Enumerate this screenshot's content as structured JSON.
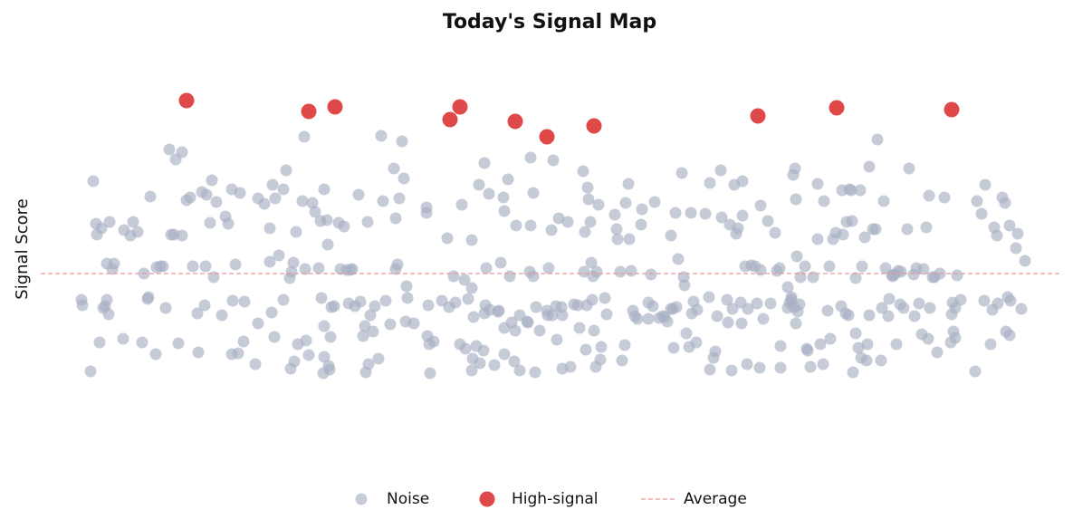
{
  "chart_data": {
    "type": "scatter",
    "title": "Today's Signal Map",
    "ylabel": "Signal Score",
    "xlim": [
      0,
      1125
    ],
    "ylim": [
      -228,
      262
    ],
    "legend": "bottom",
    "average": {
      "name": "Average",
      "value": 0,
      "color": "#e89a9a"
    },
    "series": [
      {
        "name": "Noise",
        "color": "#a7afc3",
        "x": [
          45,
          46,
          55,
          58,
          61,
          62,
          65,
          67,
          69,
          71,
          73,
          75,
          76,
          79,
          81,
          73,
          91,
          92,
          99,
          102,
          107,
          112,
          114,
          118,
          119,
          121,
          127,
          128,
          132,
          135,
          138,
          142,
          144,
          147,
          149,
          152,
          156,
          156,
          161,
          165,
          168,
          173,
          174,
          178,
          181,
          182,
          183,
          187,
          189,
          191,
          194,
          200,
          204,
          207,
          212,
          211,
          215,
          211,
          218,
          220,
          225,
          224,
          237,
          240,
          240,
          247,
          253,
          253,
          255,
          256,
          258,
          259,
          263,
          268,
          268,
          271,
          275,
          276,
          277,
          279,
          280,
          282,
          284,
          289,
          291,
          292,
          293,
          296,
          300,
          303,
          307,
          309,
          310,
          313,
          313,
          313,
          316,
          317,
          312,
          318,
          319,
          320,
          321,
          324,
          329,
          331,
          335,
          338,
          340,
          342,
          344,
          347,
          351,
          353,
          356,
          358,
          359,
          361,
          362,
          364,
          367,
          369,
          373,
          376,
          378,
          381,
          386,
          390,
          392,
          392,
          394,
          396,
          399,
          401,
          403,
          404,
          405,
          412,
          426,
          426,
          427,
          428,
          429,
          430,
          434,
          443,
          449,
          451,
          456,
          458,
          463,
          465,
          468,
          469,
          472,
          476,
          476,
          477,
          476,
          478,
          481,
          484,
          485,
          489,
          490,
          491,
          490,
          492,
          495,
          496,
          501,
          505,
          506,
          508,
          511,
          512,
          512,
          512,
          516,
          518,
          520,
          523,
          524,
          525,
          529,
          529,
          537,
          538,
          540,
          541,
          541,
          544,
          544,
          546,
          547,
          551,
          559,
          560,
          561,
          564,
          565,
          566,
          569,
          570,
          572,
          575,
          576,
          576,
          582,
          585,
          589,
          593,
          595,
          599,
          600,
          601,
          602,
          603,
          604,
          605,
          607,
          608,
          609,
          610,
          611,
          613,
          614,
          616,
          618,
          619,
          623,
          625,
          634,
          636,
          637,
          640,
          642,
          645,
          646,
          649,
          650,
          652,
          654,
          656,
          659,
          663,
          664,
          671,
          671,
          674,
          676,
          678,
          683,
          687,
          689,
          692,
          696,
          696,
          698,
          699,
          701,
          702,
          704,
          708,
          710,
          711,
          713,
          716,
          718,
          719,
          721,
          724,
          725,
          734,
          738,
          739,
          739,
          743,
          745,
          747,
          751,
          752,
          758,
          759,
          761,
          763,
          764,
          766,
          768,
          770,
          773,
          774,
          775,
          775,
          778,
          780,
          781,
          785,
          789,
          791,
          795,
          794,
          795,
          798,
          803,
          806,
          811,
          813,
          816,
          817,
          817,
          825,
          825,
          827,
          829,
          829,
          831,
          832,
          833,
          834,
          834,
          835,
          836,
          838,
          839,
          844,
          846,
          847,
          850,
          853,
          858,
          858,
          861,
          864,
          865,
          869,
          871,
          872,
          875,
          878,
          884,
          885,
          886,
          889,
          890,
          892,
          893,
          895,
          896,
          897,
          900,
          900,
          903,
          905,
          906,
          907,
          910,
          912,
          913,
          915,
          915,
          919,
          922,
          924,
          928,
          929,
          931,
          933,
          936,
          937,
          940,
          941,
          943,
          945,
          947,
          949,
          950,
          953,
          957,
          959,
          964,
          965,
          967,
          970,
          973,
          975,
          978,
          981,
          980,
          982,
          985,
          987,
          990,
          993,
          998,
          1005,
          1006,
          1007,
          1008,
          1010,
          1010,
          1012,
          1016,
          1032,
          1034,
          1039,
          1042,
          1043,
          1049,
          1051,
          1053,
          1056,
          1057,
          1062,
          1065,
          1066,
          1068,
          1070,
          1070,
          1071,
          1077,
          1079,
          1083,
          1087
        ],
        "values": [
          -29,
          -35,
          -108,
          102,
          55,
          43,
          -76,
          50,
          -38,
          -36,
          11,
          -45,
          57,
          5,
          11,
          -29,
          -72,
          48,
          42,
          57,
          46,
          -76,
          0,
          -28,
          -26,
          85,
          -89,
          7,
          8,
          8,
          -38,
          137,
          43,
          43,
          126,
          -77,
          134,
          42,
          81,
          84,
          8,
          -44,
          -87,
          90,
          -35,
          8,
          87,
          56,
          103,
          -4,
          79,
          -46,
          63,
          55,
          -30,
          93,
          10,
          -89,
          -88,
          89,
          -31,
          -75,
          -100,
          83,
          -55,
          77,
          13,
          50,
          -43,
          98,
          -70,
          83,
          20,
          -29,
          93,
          114,
          -5,
          -105,
          2,
          12,
          -97,
          46,
          -78,
          80,
          151,
          5,
          -74,
          -90,
          78,
          68,
          6,
          58,
          -27,
          -58,
          93,
          -92,
          59,
          32,
          -110,
          -102,
          -106,
          -70,
          -37,
          -36,
          56,
          5,
          52,
          4,
          -33,
          4,
          5,
          -36,
          87,
          -31,
          -69,
          -58,
          -109,
          57,
          -100,
          -46,
          -64,
          -36,
          -94,
          152,
          80,
          -30,
          -56,
          116,
          5,
          61,
          10,
          83,
          146,
          105,
          -53,
          -14,
          -27,
          -55,
          67,
          73,
          -69,
          -35,
          -78,
          -110,
          -75,
          -30,
          39,
          -37,
          -3,
          -32,
          -78,
          76,
          -7,
          -83,
          -28,
          37,
          -16,
          -94,
          -107,
          -48,
          -80,
          98,
          -99,
          -85,
          122,
          -35,
          -44,
          6,
          88,
          -40,
          -101,
          -42,
          -41,
          12,
          84,
          69,
          -60,
          -89,
          104,
          -3,
          -54,
          -97,
          -63,
          53,
          -107,
          -46,
          -53,
          -54,
          2,
          128,
          53,
          89,
          -3,
          -109,
          -37,
          -63,
          -41,
          -46,
          6,
          48,
          -46,
          125,
          -36,
          -73,
          61,
          -37,
          -105,
          -46,
          57,
          -103,
          -34,
          -35,
          -60,
          113,
          2,
          46,
          -84,
          -35,
          95,
          82,
          57,
          12,
          -29,
          -3,
          -63,
          -103,
          2,
          76,
          -95,
          -81,
          -27,
          -45,
          65,
          49,
          38,
          2,
          -96,
          -79,
          78,
          99,
          38,
          3,
          -41,
          -47,
          -50,
          54,
          71,
          -50,
          -32,
          -1,
          -36,
          79,
          -49,
          -47,
          -48,
          -53,
          -39,
          42,
          -39,
          -82,
          67,
          -37,
          16,
          111,
          -4,
          -13,
          -66,
          -81,
          67,
          -44,
          -31,
          -76,
          -40,
          66,
          -26,
          -106,
          100,
          -93,
          -86,
          -47,
          114,
          62,
          -29,
          -54,
          54,
          -107,
          -39,
          98,
          44,
          50,
          -32,
          -55,
          102,
          64,
          8,
          -100,
          -39,
          9,
          8,
          -33,
          75,
          -104,
          4,
          -50,
          58,
          -33,
          45,
          3,
          6,
          -104,
          -80,
          -15,
          -38,
          -32,
          -29,
          -26,
          109,
          -37,
          116,
          -55,
          82,
          19,
          -42,
          -34,
          -4,
          8,
          -83,
          -85,
          -103,
          -4,
          99,
          38,
          -78,
          -100,
          80,
          -41,
          8,
          -72,
          38,
          45,
          -36,
          92,
          43,
          -44,
          57,
          -46,
          93,
          92,
          58,
          -109,
          -5,
          -66,
          -82,
          92,
          -93,
          8,
          40,
          -96,
          -78,
          118,
          -46,
          49,
          49,
          148,
          -96,
          -38,
          80,
          6,
          -47,
          -28,
          -2,
          -3,
          -1,
          -78,
          3,
          -34,
          2,
          -38,
          49,
          116,
          -1,
          -47,
          6,
          -33,
          -67,
          5,
          51,
          86,
          -72,
          -38,
          -4,
          -4,
          -87,
          0,
          84,
          -76,
          -45,
          -32,
          -64,
          -38,
          -71,
          -2,
          -29,
          -108,
          80,
          66,
          -30,
          98,
          -78,
          -40,
          51,
          42,
          -33,
          84,
          78,
          -64,
          -26,
          -68,
          53,
          -30,
          28,
          44,
          -39,
          14
        ]
      },
      {
        "name": "High-signal",
        "color": "#dc3535",
        "x": [
          161,
          296,
          325,
          452,
          463,
          524,
          559,
          611,
          792,
          879,
          1006
        ],
        "values": [
          191,
          179,
          184,
          170,
          184,
          168,
          151,
          163,
          174,
          183,
          181
        ]
      }
    ]
  }
}
